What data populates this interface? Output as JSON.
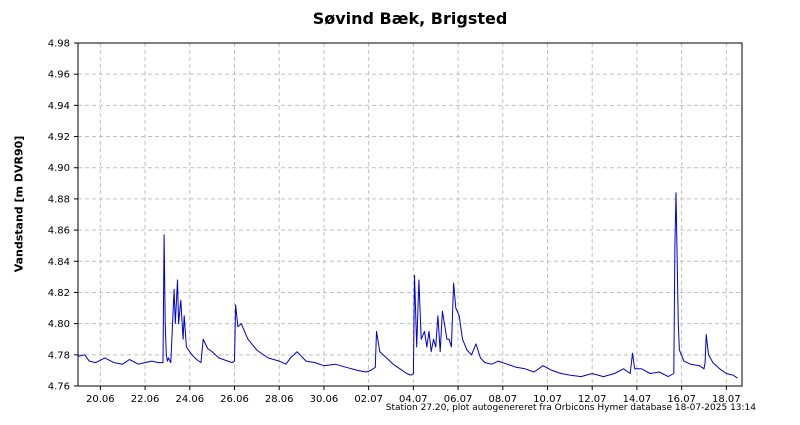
{
  "chart_data": {
    "type": "line",
    "title": "Søvind Bæk, Brigsted",
    "ylabel": "Vandstand [m DVR90]",
    "xlabel": "",
    "ylim": [
      4.76,
      4.98
    ],
    "yticks": [
      "4.76",
      "4.78",
      "4.80",
      "4.82",
      "4.84",
      "4.86",
      "4.88",
      "4.90",
      "4.92",
      "4.94",
      "4.96",
      "4.98"
    ],
    "xlim_days_from_jun19": [
      0.0,
      29.7
    ],
    "xticks": [
      {
        "label": "20.06",
        "day": 1
      },
      {
        "label": "22.06",
        "day": 3
      },
      {
        "label": "24.06",
        "day": 5
      },
      {
        "label": "26.06",
        "day": 7
      },
      {
        "label": "28.06",
        "day": 9
      },
      {
        "label": "30.06",
        "day": 11
      },
      {
        "label": "02.07",
        "day": 13
      },
      {
        "label": "04.07",
        "day": 15
      },
      {
        "label": "06.07",
        "day": 17
      },
      {
        "label": "08.07",
        "day": 19
      },
      {
        "label": "10.07",
        "day": 21
      },
      {
        "label": "12.07",
        "day": 23
      },
      {
        "label": "14.07",
        "day": 25
      },
      {
        "label": "16.07",
        "day": 27
      },
      {
        "label": "18.07",
        "day": 29
      }
    ],
    "grid": true,
    "line_color": "#0000cc",
    "series": [
      {
        "x": [
          0.0,
          0.3,
          0.5,
          0.8,
          1.2,
          1.6,
          2.0,
          2.3,
          2.7,
          3.0,
          3.3,
          3.6,
          3.8,
          3.85,
          3.9,
          3.95,
          4.0,
          4.05,
          4.15,
          4.3,
          4.35,
          4.45,
          4.5,
          4.6,
          4.7,
          4.75,
          4.85,
          5.1,
          5.3,
          5.5,
          5.6,
          5.8,
          6.0,
          6.3,
          6.7,
          6.9,
          7.0,
          7.05,
          7.15,
          7.3,
          7.6,
          8.0,
          8.5,
          9.0,
          9.3,
          9.5,
          9.8,
          10.2,
          10.6,
          11.0,
          11.5,
          12.0,
          12.5,
          12.9,
          13.1,
          13.3,
          13.35,
          13.5,
          13.8,
          14.1,
          14.4,
          14.7,
          14.9,
          15.0,
          15.05,
          15.15,
          15.25,
          15.35,
          15.5,
          15.6,
          15.7,
          15.8,
          15.9,
          16.0,
          16.1,
          16.2,
          16.3,
          16.5,
          16.6,
          16.7,
          16.8,
          16.9,
          17.05,
          17.2,
          17.4,
          17.6,
          17.8,
          18.0,
          18.2,
          18.5,
          18.8,
          19.2,
          19.6,
          20.0,
          20.4,
          20.8,
          21.2,
          21.6,
          22.0,
          22.5,
          23.0,
          23.5,
          24.0,
          24.4,
          24.7,
          24.8,
          24.9,
          25.2,
          25.6,
          26.0,
          26.4,
          26.65,
          26.7,
          26.75,
          26.8,
          26.85,
          26.9,
          27.1,
          27.4,
          27.8,
          28.0,
          28.05,
          28.1,
          28.2,
          28.4,
          28.7,
          29.0,
          29.3,
          29.5
        ],
        "y": [
          4.779,
          4.78,
          4.776,
          4.775,
          4.778,
          4.775,
          4.774,
          4.777,
          4.774,
          4.775,
          4.776,
          4.775,
          4.775,
          4.857,
          4.8,
          4.78,
          4.776,
          4.778,
          4.775,
          4.822,
          4.8,
          4.828,
          4.8,
          4.815,
          4.79,
          4.805,
          4.785,
          4.78,
          4.777,
          4.775,
          4.79,
          4.784,
          4.782,
          4.778,
          4.776,
          4.775,
          4.776,
          4.812,
          4.798,
          4.8,
          4.79,
          4.783,
          4.778,
          4.776,
          4.774,
          4.778,
          4.782,
          4.776,
          4.775,
          4.773,
          4.774,
          4.772,
          4.77,
          4.769,
          4.77,
          4.772,
          4.795,
          4.782,
          4.778,
          4.774,
          4.771,
          4.768,
          4.767,
          4.768,
          4.831,
          4.785,
          4.828,
          4.79,
          4.795,
          4.785,
          4.795,
          4.782,
          4.79,
          4.785,
          4.805,
          4.782,
          4.808,
          4.79,
          4.79,
          4.785,
          4.826,
          4.81,
          4.805,
          4.79,
          4.783,
          4.78,
          4.787,
          4.778,
          4.775,
          4.774,
          4.776,
          4.774,
          4.772,
          4.771,
          4.769,
          4.773,
          4.77,
          4.768,
          4.767,
          4.766,
          4.768,
          4.766,
          4.768,
          4.771,
          4.768,
          4.781,
          4.771,
          4.771,
          4.768,
          4.769,
          4.766,
          4.768,
          4.85,
          4.884,
          4.84,
          4.8,
          4.783,
          4.776,
          4.774,
          4.773,
          4.771,
          4.775,
          4.793,
          4.78,
          4.775,
          4.771,
          4.768,
          4.767,
          4.765
        ]
      }
    ]
  },
  "footer_note": "Station 27.20, plot autogenereret fra Orbicons Hymer database 18-07-2025 13:14"
}
